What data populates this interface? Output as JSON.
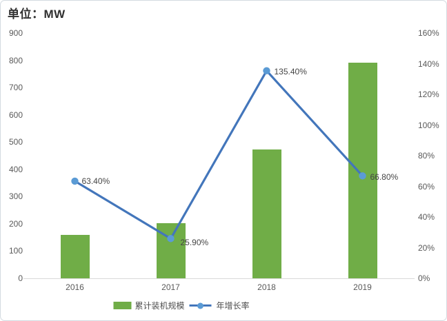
{
  "title": "单位：MW",
  "chart_data": {
    "type": "combo",
    "categories": [
      "2016",
      "2017",
      "2018",
      "2019"
    ],
    "series": [
      {
        "name": "累计装机规模",
        "type": "bar",
        "axis": "left",
        "values": [
          160,
          201,
          474,
          791
        ],
        "color": "#70ad47"
      },
      {
        "name": "年增长率",
        "type": "line",
        "axis": "right",
        "values": [
          63.4,
          25.9,
          135.4,
          66.8
        ],
        "labels": [
          "63.40%",
          "25.90%",
          "135.40%",
          "66.80%"
        ],
        "color": "#4376bb",
        "marker_color": "#5b9bd5"
      }
    ],
    "left_axis": {
      "min": 0,
      "max": 900,
      "step": 100,
      "ticks": [
        "0",
        "100",
        "200",
        "300",
        "400",
        "500",
        "600",
        "700",
        "800",
        "900"
      ]
    },
    "right_axis": {
      "min": 0,
      "max": 160,
      "step": 20,
      "ticks": [
        "0%",
        "20%",
        "40%",
        "60%",
        "80%",
        "100%",
        "120%",
        "140%",
        "160%"
      ]
    },
    "grid": false,
    "legend_position": "bottom"
  }
}
